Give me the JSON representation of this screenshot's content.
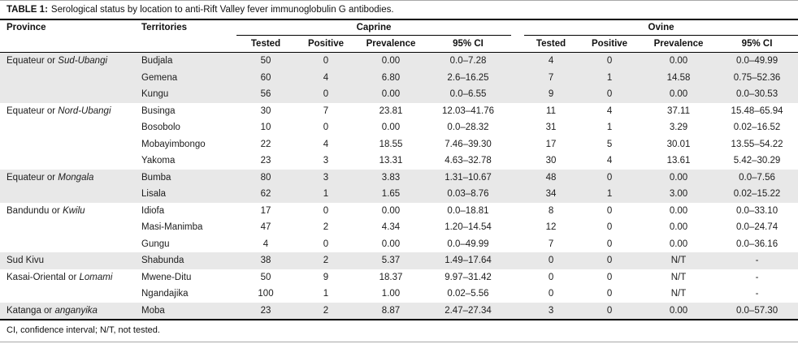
{
  "caption": {
    "label": "TABLE 1:",
    "text": "Serological status by location to anti-Rift Valley fever immunoglobulin G antibodies."
  },
  "header": {
    "province": "Province",
    "territories": "Territories",
    "caprine": "Caprine",
    "ovine": "Ovine",
    "sub": [
      "Tested",
      "Positive",
      "Prevalence",
      "95% CI"
    ]
  },
  "rows": [
    {
      "province": "Equateur or ",
      "province_italic": "Sud-Ubangi",
      "territory": "Budjala",
      "caprine": [
        "50",
        "0",
        "0.00",
        "0.0–7.28"
      ],
      "ovine": [
        "4",
        "0",
        "0.00",
        "0.0–49.99"
      ],
      "shade": true
    },
    {
      "province": "",
      "province_italic": "",
      "territory": "Gemena",
      "caprine": [
        "60",
        "4",
        "6.80",
        "2.6–16.25"
      ],
      "ovine": [
        "7",
        "1",
        "14.58",
        "0.75–52.36"
      ],
      "shade": true
    },
    {
      "province": "",
      "province_italic": "",
      "territory": "Kungu",
      "caprine": [
        "56",
        "0",
        "0.00",
        "0.0–6.55"
      ],
      "ovine": [
        "9",
        "0",
        "0.00",
        "0.0–30.53"
      ],
      "shade": true
    },
    {
      "province": "Equateur or ",
      "province_italic": "Nord-Ubangi",
      "territory": "Businga",
      "caprine": [
        "30",
        "7",
        "23.81",
        "12.03–41.76"
      ],
      "ovine": [
        "11",
        "4",
        "37.11",
        "15.48–65.94"
      ],
      "shade": false
    },
    {
      "province": "",
      "province_italic": "",
      "territory": "Bosobolo",
      "caprine": [
        "10",
        "0",
        "0.00",
        "0.0–28.32"
      ],
      "ovine": [
        "31",
        "1",
        "3.29",
        "0.02–16.52"
      ],
      "shade": false
    },
    {
      "province": "",
      "province_italic": "",
      "territory": "Mobayimbongo",
      "caprine": [
        "22",
        "4",
        "18.55",
        "7.46–39.30"
      ],
      "ovine": [
        "17",
        "5",
        "30.01",
        "13.55–54.22"
      ],
      "shade": false
    },
    {
      "province": "",
      "province_italic": "",
      "territory": "Yakoma",
      "caprine": [
        "23",
        "3",
        "13.31",
        "4.63–32.78"
      ],
      "ovine": [
        "30",
        "4",
        "13.61",
        "5.42–30.29"
      ],
      "shade": false
    },
    {
      "province": "Equateur or ",
      "province_italic": "Mongala",
      "territory": "Bumba",
      "caprine": [
        "80",
        "3",
        "3.83",
        "1.31–10.67"
      ],
      "ovine": [
        "48",
        "0",
        "0.00",
        "0.0–7.56"
      ],
      "shade": true
    },
    {
      "province": "",
      "province_italic": "",
      "territory": "Lisala",
      "caprine": [
        "62",
        "1",
        "1.65",
        "0.03–8.76"
      ],
      "ovine": [
        "34",
        "1",
        "3.00",
        "0.02–15.22"
      ],
      "shade": true
    },
    {
      "province": "Bandundu or ",
      "province_italic": "Kwilu",
      "territory": "Idiofa",
      "caprine": [
        "17",
        "0",
        "0.00",
        "0.0–18.81"
      ],
      "ovine": [
        "8",
        "0",
        "0.00",
        "0.0–33.10"
      ],
      "shade": false
    },
    {
      "province": "",
      "province_italic": "",
      "territory": "Masi-Manimba",
      "caprine": [
        "47",
        "2",
        "4.34",
        "1.20–14.54"
      ],
      "ovine": [
        "12",
        "0",
        "0.00",
        "0.0–24.74"
      ],
      "shade": false
    },
    {
      "province": "",
      "province_italic": "",
      "territory": "Gungu",
      "caprine": [
        "4",
        "0",
        "0.00",
        "0.0–49.99"
      ],
      "ovine": [
        "7",
        "0",
        "0.00",
        "0.0–36.16"
      ],
      "shade": false
    },
    {
      "province": "Sud Kivu",
      "province_italic": "",
      "territory": "Shabunda",
      "caprine": [
        "38",
        "2",
        "5.37",
        "1.49–17.64"
      ],
      "ovine": [
        "0",
        "0",
        "N/T",
        "-"
      ],
      "shade": true
    },
    {
      "province": "Kasai-Oriental or ",
      "province_italic": "Lomami",
      "territory": "Mwene-Ditu",
      "caprine": [
        "50",
        "9",
        "18.37",
        "9.97–31.42"
      ],
      "ovine": [
        "0",
        "0",
        "N/T",
        "-"
      ],
      "shade": false
    },
    {
      "province": "",
      "province_italic": "",
      "territory": "Ngandajika",
      "caprine": [
        "100",
        "1",
        "1.00",
        "0.02–5.56"
      ],
      "ovine": [
        "0",
        "0",
        "N/T",
        "-"
      ],
      "shade": false
    },
    {
      "province": "Katanga or ",
      "province_italic": "anganyika",
      "territory": "Moba",
      "caprine": [
        "23",
        "2",
        "8.87",
        "2.47–27.34"
      ],
      "ovine": [
        "3",
        "0",
        "0.00",
        "0.0–57.30"
      ],
      "shade": true
    }
  ],
  "footnote": "CI, confidence interval; N/T, not tested.",
  "colors": {
    "zebra_row": "#e8e8e8",
    "rule_heavy": "#000000",
    "rule_hairline": "#a8a8a8",
    "text": "#1c1c1c"
  }
}
